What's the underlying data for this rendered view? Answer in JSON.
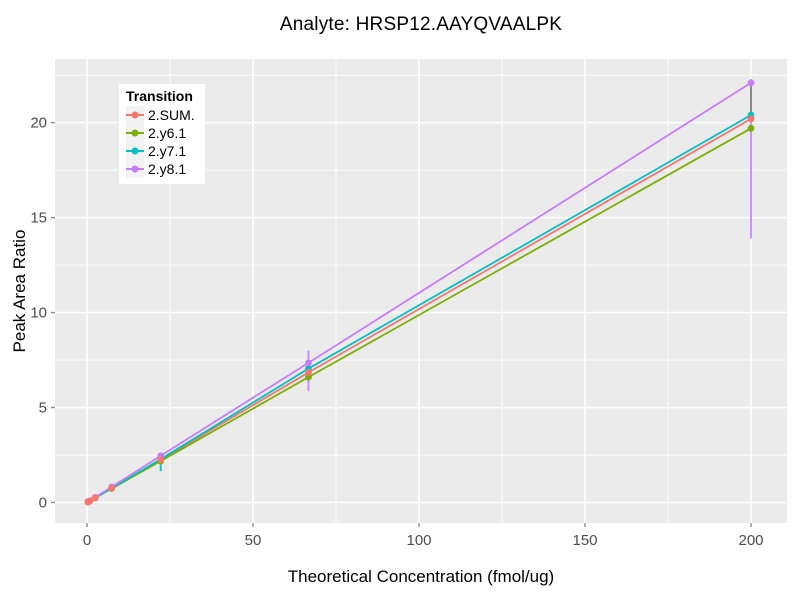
{
  "title": "Analyte: HRSP12.AAYQVAALPK",
  "chart_data": {
    "type": "line",
    "title": "Analyte: HRSP12.AAYQVAALPK",
    "xlabel": "Theoretical Concentration (fmol/ug)",
    "ylabel": "Peak Area Ratio",
    "xlim": [
      -9.64,
      210.84
    ],
    "ylim": [
      -1.08,
      23.35
    ],
    "xticks": [
      0,
      50,
      100,
      150,
      200
    ],
    "yticks": [
      0,
      5,
      10,
      15,
      20
    ],
    "xminor": [
      25,
      75,
      125,
      175
    ],
    "yminor": [
      2.5,
      7.5,
      12.5,
      17.5,
      22.5
    ],
    "grid": true,
    "panel_bg": "#EBEBEB",
    "grid_color": "#FFFFFF",
    "tick_color": "#8C8C8C",
    "tick_label_color": "#4D4D4D",
    "legend": {
      "title": "Transition",
      "position": "top-left-inside"
    },
    "x": [
      0.27,
      0.82,
      2.47,
      7.41,
      22.2,
      66.7,
      200
    ],
    "series": [
      {
        "name": "2.SUM.",
        "color": "#F8766D",
        "values": [
          0.03,
          0.08,
          0.25,
          0.75,
          2.25,
          6.85,
          20.2
        ]
      },
      {
        "name": "2.y6.1",
        "color": "#7CAE00",
        "values": [
          0.03,
          0.08,
          0.24,
          0.73,
          2.18,
          6.6,
          19.7
        ]
      },
      {
        "name": "2.y7.1",
        "color": "#00BFC4",
        "values": [
          0.03,
          0.08,
          0.25,
          0.76,
          2.28,
          7.05,
          20.4
        ]
      },
      {
        "name": "2.y8.1",
        "color": "#C77CFF",
        "values": [
          0.03,
          0.09,
          0.27,
          0.82,
          2.46,
          7.35,
          22.1
        ]
      }
    ],
    "error_bars": [
      {
        "series": "2.y7.1",
        "x": 22.2,
        "low": 1.65,
        "high": 2.4,
        "color": "#00BFC4",
        "opacity": 0.9
      },
      {
        "series": "2.y8.1",
        "x": 66.7,
        "low": 5.86,
        "high": 8.0,
        "color": "#C77CFF",
        "opacity": 0.85
      },
      {
        "series": "2.y8.1",
        "x": 200,
        "low": 13.9,
        "high": 22.3,
        "color": "#C77CFF",
        "opacity": 0.85
      },
      {
        "series": "overlap",
        "x": 200,
        "low": 20.4,
        "high": 22.0,
        "color": "#8C8480",
        "opacity": 0.9
      }
    ]
  }
}
